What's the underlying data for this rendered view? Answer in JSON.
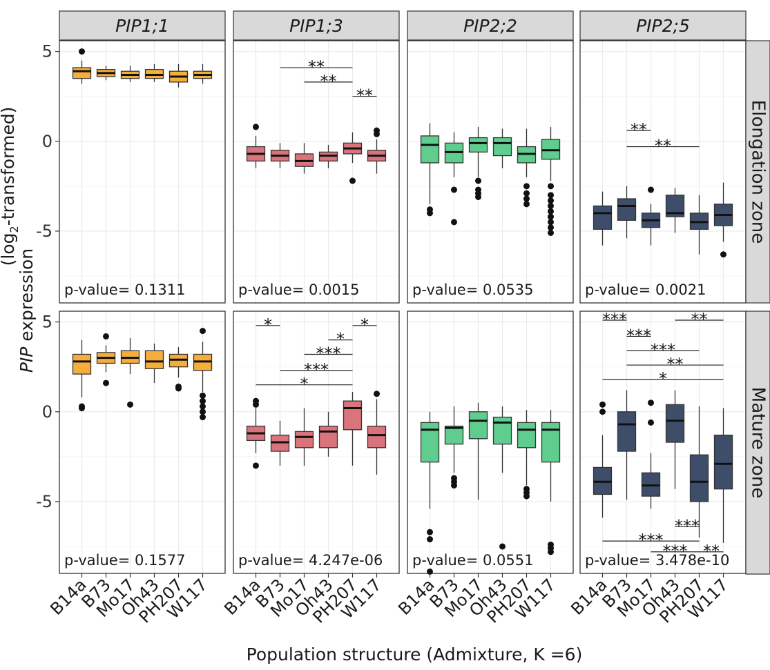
{
  "chart_data": {
    "type": "box",
    "xlabel": "Population structure (Admixture, K =6)",
    "ylabel_parts": [
      "PIP",
      " expression",
      "(log",
      "2",
      "-transformed)"
    ],
    "ylim": [
      -9,
      5.6
    ],
    "yticks": [
      5,
      0,
      -5
    ],
    "categories": [
      "B14a",
      "B73",
      "Mo17",
      "Oh43",
      "PH207",
      "W117"
    ],
    "genes": [
      "PIP1;1",
      "PIP1;3",
      "PIP2;2",
      "PIP2;5"
    ],
    "gene_colors": [
      "#F5AE3C",
      "#D9737C",
      "#5FCD8E",
      "#3E4E6A"
    ],
    "zones": [
      "Elongation zone",
      "Mature  zone"
    ],
    "panels": [
      {
        "gene": "PIP1;1",
        "zone": "Elongation zone",
        "p_value": "p-value= 0.1311",
        "boxes": [
          {
            "whislo": 3.2,
            "q1": 3.5,
            "med": 3.9,
            "q3": 4.1,
            "whishi": 4.5,
            "fliers": [
              5.0
            ]
          },
          {
            "whislo": 3.4,
            "q1": 3.6,
            "med": 3.8,
            "q3": 4.0,
            "whishi": 4.2,
            "fliers": []
          },
          {
            "whislo": 3.3,
            "q1": 3.5,
            "med": 3.7,
            "q3": 3.9,
            "whishi": 4.2,
            "fliers": []
          },
          {
            "whislo": 3.3,
            "q1": 3.5,
            "med": 3.7,
            "q3": 4.0,
            "whishi": 4.3,
            "fliers": []
          },
          {
            "whislo": 3.0,
            "q1": 3.3,
            "med": 3.6,
            "q3": 3.9,
            "whishi": 4.3,
            "fliers": []
          },
          {
            "whislo": 3.2,
            "q1": 3.5,
            "med": 3.7,
            "q3": 3.9,
            "whishi": 4.3,
            "fliers": []
          }
        ],
        "brackets": []
      },
      {
        "gene": "PIP1;3",
        "zone": "Elongation zone",
        "p_value": "p-value= 0.0015",
        "boxes": [
          {
            "whislo": -1.5,
            "q1": -1.1,
            "med": -0.7,
            "q3": -0.3,
            "whishi": 0.3,
            "fliers": [
              0.8
            ]
          },
          {
            "whislo": -1.5,
            "q1": -1.1,
            "med": -0.8,
            "q3": -0.5,
            "whishi": -0.1,
            "fliers": []
          },
          {
            "whislo": -1.8,
            "q1": -1.4,
            "med": -1.1,
            "q3": -0.7,
            "whishi": -0.1,
            "fliers": []
          },
          {
            "whislo": -1.5,
            "q1": -1.1,
            "med": -0.8,
            "q3": -0.6,
            "whishi": -0.2,
            "fliers": []
          },
          {
            "whislo": -1.2,
            "q1": -0.7,
            "med": -0.4,
            "q3": -0.1,
            "whishi": 0.5,
            "fliers": [
              -2.2
            ]
          },
          {
            "whislo": -1.8,
            "q1": -1.1,
            "med": -0.8,
            "q3": -0.5,
            "whishi": 0.1,
            "fliers": [
              0.4,
              0.6
            ]
          }
        ],
        "brackets": [
          {
            "from": 2,
            "to": 5,
            "y": 4.1,
            "label": "**"
          },
          {
            "from": 3,
            "to": 5,
            "y": 3.3,
            "label": "**"
          },
          {
            "from": 5,
            "to": 6,
            "y": 2.5,
            "label": "**"
          }
        ]
      },
      {
        "gene": "PIP2;2",
        "zone": "Elongation zone",
        "p_value": "p-value= 0.0535",
        "boxes": [
          {
            "whislo": -3.5,
            "q1": -1.2,
            "med": -0.2,
            "q3": 0.3,
            "whishi": 1.0,
            "fliers": [
              -3.8,
              -4.0
            ]
          },
          {
            "whislo": -2.0,
            "q1": -1.2,
            "med": -0.6,
            "q3": -0.1,
            "whishi": 0.5,
            "fliers": [
              -2.7,
              -4.5
            ]
          },
          {
            "whislo": -2.0,
            "q1": -0.6,
            "med": -0.1,
            "q3": 0.2,
            "whishi": 0.8,
            "fliers": [
              -2.2,
              -2.7,
              -2.9,
              -3.1
            ]
          },
          {
            "whislo": -1.5,
            "q1": -0.8,
            "med": -0.1,
            "q3": 0.2,
            "whishi": 0.7,
            "fliers": []
          },
          {
            "whislo": -2.0,
            "q1": -1.2,
            "med": -0.7,
            "q3": -0.3,
            "whishi": 0.7,
            "fliers": [
              -2.5,
              -2.9,
              -3.2,
              -3.5
            ]
          },
          {
            "whislo": -2.2,
            "q1": -1.0,
            "med": -0.5,
            "q3": 0.1,
            "whishi": 0.8,
            "fliers": [
              -2.5,
              -3.0,
              -3.3,
              -3.6,
              -3.9,
              -4.2,
              -4.5,
              -4.8,
              -5.1
            ]
          }
        ],
        "brackets": []
      },
      {
        "gene": "PIP2;5",
        "zone": "Elongation zone",
        "p_value": "p-value= 0.0021",
        "boxes": [
          {
            "whislo": -5.8,
            "q1": -4.9,
            "med": -4.0,
            "q3": -3.6,
            "whishi": -2.8,
            "fliers": []
          },
          {
            "whislo": -5.4,
            "q1": -4.4,
            "med": -3.6,
            "q3": -3.2,
            "whishi": -2.5,
            "fliers": []
          },
          {
            "whislo": -5.8,
            "q1": -4.8,
            "med": -4.4,
            "q3": -4.0,
            "whishi": -3.5,
            "fliers": [
              -2.7
            ]
          },
          {
            "whislo": -5.1,
            "q1": -4.2,
            "med": -4.0,
            "q3": -3.0,
            "whishi": -2.6,
            "fliers": []
          },
          {
            "whislo": -6.3,
            "q1": -4.9,
            "med": -4.5,
            "q3": -4.0,
            "whishi": -3.0,
            "fliers": []
          },
          {
            "whislo": -5.6,
            "q1": -4.7,
            "med": -4.1,
            "q3": -3.5,
            "whishi": -2.3,
            "fliers": [
              -6.3
            ]
          }
        ],
        "brackets": [
          {
            "from": 2,
            "to": 3,
            "y": 0.6,
            "label": "**"
          },
          {
            "from": 2,
            "to": 5,
            "y": -0.3,
            "label": "**"
          }
        ]
      },
      {
        "gene": "PIP1;1",
        "zone": "Mature  zone",
        "p_value": "p-value= 0.1577",
        "boxes": [
          {
            "whislo": 0.8,
            "q1": 2.1,
            "med": 2.8,
            "q3": 3.2,
            "whishi": 4.0,
            "fliers": [
              0.2,
              0.3
            ]
          },
          {
            "whislo": 2.2,
            "q1": 2.7,
            "med": 3.0,
            "q3": 3.3,
            "whishi": 3.7,
            "fliers": [
              1.6,
              4.2
            ]
          },
          {
            "whislo": 2.1,
            "q1": 2.7,
            "med": 3.0,
            "q3": 3.4,
            "whishi": 4.1,
            "fliers": [
              0.4
            ]
          },
          {
            "whislo": 1.6,
            "q1": 2.4,
            "med": 2.8,
            "q3": 3.4,
            "whishi": 3.8,
            "fliers": []
          },
          {
            "whislo": 1.9,
            "q1": 2.5,
            "med": 2.9,
            "q3": 3.2,
            "whishi": 3.6,
            "fliers": [
              1.3,
              1.4
            ]
          },
          {
            "whislo": 1.1,
            "q1": 2.3,
            "med": 2.8,
            "q3": 3.2,
            "whishi": 3.9,
            "fliers": [
              -0.3,
              0.0,
              0.3,
              0.6,
              0.9,
              4.5
            ]
          }
        ],
        "brackets": []
      },
      {
        "gene": "PIP1;3",
        "zone": "Mature  zone",
        "p_value": "p-value= 4.247e-06",
        "boxes": [
          {
            "whislo": -2.3,
            "q1": -1.6,
            "med": -1.2,
            "q3": -0.8,
            "whishi": 0.2,
            "fliers": [
              -3.0,
              0.4,
              0.6
            ]
          },
          {
            "whislo": -3.0,
            "q1": -2.2,
            "med": -1.7,
            "q3": -1.3,
            "whishi": -0.5,
            "fliers": []
          },
          {
            "whislo": -3.0,
            "q1": -2.0,
            "med": -1.4,
            "q3": -1.1,
            "whishi": 0.2,
            "fliers": []
          },
          {
            "whislo": -2.5,
            "q1": -2.0,
            "med": -1.1,
            "q3": -0.8,
            "whishi": 0.0,
            "fliers": []
          },
          {
            "whislo": -3.0,
            "q1": -1.0,
            "med": 0.2,
            "q3": 0.6,
            "whishi": 1.1,
            "fliers": []
          },
          {
            "whislo": -3.5,
            "q1": -2.0,
            "med": -1.3,
            "q3": -0.8,
            "whishi": 0.7,
            "fliers": [
              1.0
            ]
          }
        ],
        "brackets": [
          {
            "from": 1,
            "to": 2,
            "y": 4.8,
            "label": "*"
          },
          {
            "from": 5,
            "to": 6,
            "y": 4.8,
            "label": "*"
          },
          {
            "from": 4,
            "to": 5,
            "y": 4.0,
            "label": "*"
          },
          {
            "from": 3,
            "to": 5,
            "y": 3.2,
            "label": "***"
          },
          {
            "from": 2,
            "to": 5,
            "y": 2.3,
            "label": "***"
          },
          {
            "from": 1,
            "to": 5,
            "y": 1.5,
            "label": "*"
          }
        ]
      },
      {
        "gene": "PIP2;2",
        "zone": "Mature  zone",
        "p_value": "p-value= 0.0551",
        "boxes": [
          {
            "whislo": -5.4,
            "q1": -2.8,
            "med": -1.0,
            "q3": -0.6,
            "whishi": 0.0,
            "fliers": [
              -6.7,
              -7.1,
              -8.9
            ]
          },
          {
            "whislo": -3.4,
            "q1": -1.8,
            "med": -0.9,
            "q3": -0.8,
            "whishi": 0.3,
            "fliers": [
              -3.7,
              -3.9,
              -4.1
            ]
          },
          {
            "whislo": -4.9,
            "q1": -1.5,
            "med": -0.5,
            "q3": 0.0,
            "whishi": 0.5,
            "fliers": []
          },
          {
            "whislo": -3.4,
            "q1": -1.8,
            "med": -0.6,
            "q3": -0.3,
            "whishi": 0.3,
            "fliers": [
              -7.5
            ]
          },
          {
            "whislo": -4.1,
            "q1": -2.0,
            "med": -1.0,
            "q3": -0.6,
            "whishi": 0.1,
            "fliers": [
              -4.3,
              -4.5,
              -4.7
            ]
          },
          {
            "whislo": -5.0,
            "q1": -2.8,
            "med": -1.0,
            "q3": -0.6,
            "whishi": 0.1,
            "fliers": [
              -7.4,
              -7.6,
              -7.8
            ]
          }
        ],
        "brackets": []
      },
      {
        "gene": "PIP2;5",
        "zone": "Mature  zone",
        "p_value": "p-value= 3.478e-10",
        "boxes": [
          {
            "whislo": -5.9,
            "q1": -4.6,
            "med": -3.9,
            "q3": -3.1,
            "whishi": -1.3,
            "fliers": [
              0.0,
              0.4
            ]
          },
          {
            "whislo": -4.9,
            "q1": -2.2,
            "med": -0.7,
            "q3": 0.0,
            "whishi": 1.2,
            "fliers": []
          },
          {
            "whislo": -5.4,
            "q1": -4.7,
            "med": -4.1,
            "q3": -3.4,
            "whishi": -2.3,
            "fliers": [
              -0.6,
              0.5
            ]
          },
          {
            "whislo": -4.3,
            "q1": -1.7,
            "med": -0.5,
            "q3": 0.4,
            "whishi": 1.2,
            "fliers": []
          },
          {
            "whislo": -7.0,
            "q1": -5.0,
            "med": -3.9,
            "q3": -2.4,
            "whishi": 0.3,
            "fliers": []
          },
          {
            "whislo": -7.3,
            "q1": -4.3,
            "med": -2.9,
            "q3": -1.3,
            "whishi": 0.2,
            "fliers": []
          }
        ],
        "brackets": [
          {
            "from": 1,
            "to": 2,
            "y": 5.1,
            "label": "***"
          },
          {
            "from": 4,
            "to": 6,
            "y": 5.1,
            "label": "**"
          },
          {
            "from": 2,
            "to": 3,
            "y": 4.2,
            "label": "***"
          },
          {
            "from": 2,
            "to": 5,
            "y": 3.4,
            "label": "***"
          },
          {
            "from": 2,
            "to": 6,
            "y": 2.6,
            "label": "**"
          },
          {
            "from": 1,
            "to": 6,
            "y": 1.8,
            "label": "*"
          },
          {
            "from": 4,
            "to": 5,
            "y": -6.4,
            "label": "***"
          },
          {
            "from": 1,
            "to": 5,
            "y": -7.2,
            "label": "***"
          },
          {
            "from": 3,
            "to": 5,
            "y": -7.8,
            "label": "***"
          },
          {
            "from": 5,
            "to": 6,
            "y": -7.8,
            "label": "**"
          }
        ]
      }
    ]
  }
}
